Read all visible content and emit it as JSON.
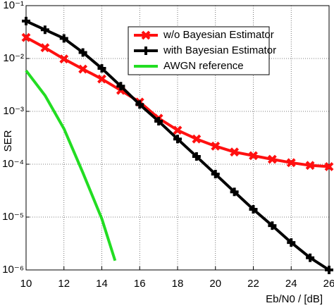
{
  "chart_data": {
    "type": "line",
    "xlabel": "Eb/N0 / [dB]",
    "ylabel": "SER",
    "xlim": [
      10,
      26
    ],
    "xticks": [
      10,
      12,
      14,
      16,
      18,
      20,
      22,
      24,
      26
    ],
    "ylim": [
      1e-06,
      0.1
    ],
    "log_y": true,
    "yticks": [
      {
        "value": 0.1,
        "label": "10⁻¹"
      },
      {
        "value": 0.01,
        "label": "10⁻²"
      },
      {
        "value": 0.001,
        "label": "10⁻³"
      },
      {
        "value": 0.0001,
        "label": "10⁻⁴"
      },
      {
        "value": 1e-05,
        "label": "10⁻⁵"
      },
      {
        "value": 1e-06,
        "label": "10⁻⁶"
      }
    ],
    "grid": true,
    "legend": "upper right",
    "series": [
      {
        "name": "w/o Bayesian Estimator",
        "color": "#ff1010",
        "marker": "x",
        "x": [
          10,
          11,
          12,
          13,
          14,
          15,
          16,
          17,
          18,
          19,
          20,
          21,
          22,
          23,
          24,
          25,
          26
        ],
        "values": [
          0.025,
          0.016,
          0.0098,
          0.0063,
          0.0041,
          0.0025,
          0.0015,
          0.00074,
          0.00044,
          0.0003,
          0.00022,
          0.00017,
          0.000145,
          0.000124,
          0.000107,
          9.5e-05,
          9e-05
        ]
      },
      {
        "name": "with Bayesian Estimator",
        "color": "#000000",
        "marker": "+",
        "x": [
          10,
          11,
          12,
          13,
          14,
          15,
          16,
          17,
          18,
          19,
          20,
          21,
          22,
          23,
          24,
          25,
          26
        ],
        "values": [
          0.051,
          0.035,
          0.024,
          0.013,
          0.0065,
          0.003,
          0.00135,
          0.00065,
          0.0003,
          0.00014,
          6.5e-05,
          3e-05,
          1.4e-05,
          6.9e-06,
          3.3e-06,
          1.7e-06,
          1e-06
        ]
      },
      {
        "name": "AWGN reference",
        "color": "#22dd22",
        "x": [
          10,
          11,
          12,
          13,
          14,
          14.7
        ],
        "values": [
          0.0059,
          0.002,
          0.00047,
          6.9e-05,
          9.3e-06,
          1.5e-06
        ]
      }
    ]
  }
}
